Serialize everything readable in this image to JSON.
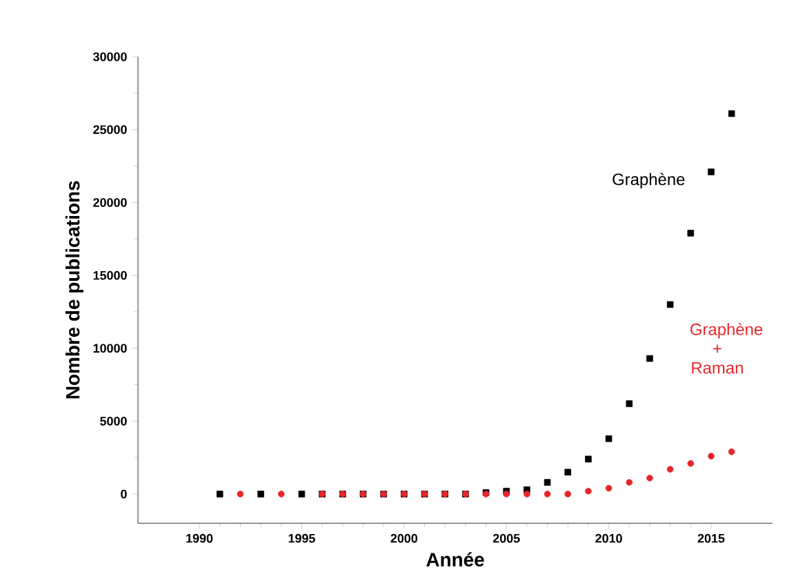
{
  "chart_data": {
    "type": "scatter",
    "xlabel": "Année",
    "ylabel": "Nombre de publications",
    "xlim": [
      1987,
      2018
    ],
    "ylim": [
      -2000,
      30000
    ],
    "xticks": [
      1990,
      1995,
      2000,
      2005,
      2010,
      2015
    ],
    "yticks": [
      0,
      5000,
      10000,
      15000,
      20000,
      25000,
      30000
    ],
    "grid": false,
    "series": [
      {
        "name": "Graphène",
        "color": "#000000",
        "marker": "square",
        "x": [
          1991,
          1993,
          1995,
          1996,
          1997,
          1998,
          1999,
          2000,
          2001,
          2002,
          2003,
          2004,
          2005,
          2006,
          2007,
          2008,
          2009,
          2010,
          2011,
          2012,
          2013,
          2014,
          2015,
          2016
        ],
        "values": [
          0,
          0,
          0,
          0,
          0,
          0,
          0,
          0,
          0,
          0,
          0,
          100,
          200,
          300,
          800,
          1500,
          2400,
          3800,
          6200,
          9300,
          13000,
          17900,
          22100,
          26100
        ]
      },
      {
        "name": "Graphène + Raman",
        "color": "#e8262a",
        "marker": "circle",
        "x": [
          1992,
          1994,
          1996,
          1997,
          1998,
          1999,
          2000,
          2001,
          2002,
          2003,
          2004,
          2005,
          2006,
          2007,
          2008,
          2009,
          2010,
          2011,
          2012,
          2013,
          2014,
          2015,
          2016
        ],
        "values": [
          0,
          0,
          0,
          0,
          0,
          0,
          0,
          0,
          0,
          0,
          0,
          0,
          0,
          0,
          0,
          200,
          400,
          800,
          1100,
          1700,
          2100,
          2600,
          2900
        ]
      }
    ]
  }
}
